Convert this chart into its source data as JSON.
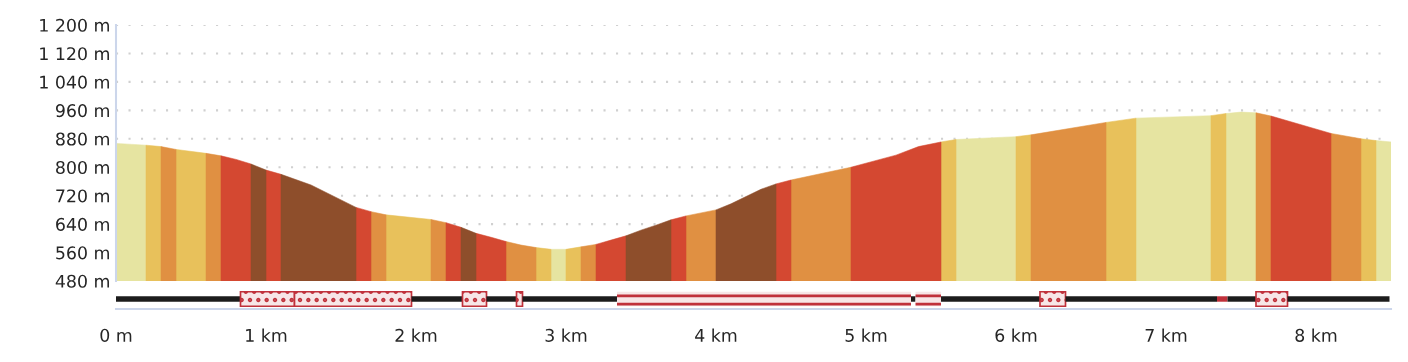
{
  "chart_data": [
    {
      "type": "area",
      "xlim": [
        0,
        8.5
      ],
      "ylim": [
        480,
        1200
      ],
      "yticks": [
        {
          "value": 480,
          "label": "480 m"
        },
        {
          "value": 560,
          "label": "560 m"
        },
        {
          "value": 640,
          "label": "640 m"
        },
        {
          "value": 720,
          "label": "720 m"
        },
        {
          "value": 800,
          "label": "800 m"
        },
        {
          "value": 880,
          "label": "880 m"
        },
        {
          "value": 960,
          "label": "960 m"
        },
        {
          "value": 1040,
          "label": "1 040 m"
        },
        {
          "value": 1120,
          "label": "1 120 m"
        },
        {
          "value": 1200,
          "label": "1 200 m"
        }
      ],
      "grid": "y",
      "tick_labels": "y",
      "series": [
        {
          "color": "#e6e4a1",
          "x": [
            0,
            0.2,
            1.5,
            2.9,
            3.0,
            4.3,
            5.6,
            6.0,
            6.4,
            6.8,
            7.3,
            7.35,
            7.4,
            7.5,
            7.6,
            8.0,
            8.4,
            8.5
          ],
          "values": [
            867,
            862,
            null,
            569,
            569,
            null,
            878,
            886,
            null,
            938,
            945,
            null,
            951,
            955,
            953,
            null,
            875,
            871
          ]
        },
        {
          "color": "#e8c15b",
          "x": [
            0.2,
            0.3,
            0.35,
            0.4,
            0.6,
            1.2,
            1.8,
            2.1,
            2.45,
            2.8,
            2.9,
            2.95,
            3.0,
            3.1,
            4.3,
            5.5,
            5.6,
            5.8,
            6.0,
            6.1,
            6.35,
            6.6,
            6.8,
            7.05,
            7.3,
            7.4,
            7.85,
            8.3,
            8.4
          ],
          "values": [
            862,
            858,
            null,
            850,
            839,
            null,
            666,
            653,
            null,
            574,
            569,
            null,
            569,
            576,
            null,
            871,
            878,
            null,
            886,
            891,
            null,
            926,
            938,
            null,
            945,
            951,
            null,
            880,
            875
          ]
        },
        {
          "color": "#e09042",
          "x": [
            0.3,
            0.4,
            0.5,
            0.6,
            0.7,
            1.2,
            1.7,
            1.8,
            1.95,
            2.1,
            2.2,
            2.4,
            2.6,
            2.7,
            2.8,
            2.95,
            3.1,
            3.2,
            3.5,
            3.8,
            4.0,
            4.25,
            4.5,
            4.9,
            5.5,
            6.1,
            6.6,
            7.1,
            7.6,
            7.7,
            7.9,
            8.1,
            8.3
          ],
          "values": [
            858,
            850,
            null,
            839,
            832,
            null,
            675,
            666,
            null,
            653,
            644,
            null,
            591,
            581,
            574,
            null,
            576,
            583,
            null,
            663,
            680,
            null,
            764,
            800,
            null,
            891,
            926,
            null,
            953,
            944,
            null,
            895,
            880
          ]
        },
        {
          "color": "#d44831",
          "x": [
            0.7,
            0.8,
            0.9,
            0.95,
            1.0,
            1.1,
            1.35,
            1.6,
            1.7,
            1.95,
            2.2,
            2.3,
            2.35,
            2.4,
            2.5,
            2.6,
            2.9,
            3.2,
            3.3,
            3.4,
            3.55,
            3.7,
            3.8,
            4.1,
            4.4,
            4.5,
            4.7,
            4.9,
            5.2,
            5.35,
            5.5,
            6.6,
            7.7,
            8.1
          ],
          "values": [
            832,
            822,
            809,
            null,
            792,
            780,
            null,
            687,
            675,
            null,
            644,
            631,
            null,
            614,
            603,
            591,
            null,
            583,
            595,
            607,
            null,
            652,
            663,
            null,
            753,
            764,
            null,
            800,
            834,
            858,
            871,
            null,
            944,
            895
          ]
        },
        {
          "color": "#8e4e2b",
          "x": [
            0.9,
            1.0,
            1.05,
            1.1,
            1.3,
            1.6,
            1.95,
            2.3,
            2.4,
            2.9,
            3.4,
            3.5,
            3.6,
            3.7,
            3.85,
            4.0,
            4.1,
            4.3,
            4.4
          ],
          "values": [
            809,
            792,
            null,
            780,
            750,
            687,
            null,
            631,
            614,
            null,
            607,
            623,
            637,
            652,
            null,
            680,
            697,
            738,
            753
          ]
        }
      ]
    },
    {
      "type": "bar",
      "orientation": "horizontal",
      "stacked": true,
      "categories": [
        null
      ],
      "xlim": [
        0,
        8.5
      ],
      "xticks": [
        {
          "value": 0,
          "label": "0 m"
        },
        {
          "value": 1,
          "label": "1 km"
        },
        {
          "value": 2,
          "label": "2 km"
        },
        {
          "value": 3,
          "label": "3 km"
        },
        {
          "value": 4,
          "label": "4 km"
        },
        {
          "value": 5,
          "label": "5 km"
        },
        {
          "value": 6,
          "label": "6 km"
        },
        {
          "value": 7,
          "label": "7 km"
        },
        {
          "value": 8,
          "label": "8 km"
        }
      ],
      "tick_labels": "x",
      "series": [
        {
          "color": "#1c1c1c",
          "line_style": "solid",
          "values": [
            0.83
          ]
        },
        {
          "color": "#c0313b",
          "line_style": "dotted",
          "values": [
            0.36
          ]
        },
        {
          "color": "#c0313b",
          "line_style": "dotted",
          "values": [
            0.78
          ]
        },
        {
          "color": "#1c1c1c",
          "line_style": "solid",
          "values": [
            0.34
          ]
        },
        {
          "color": "#c0313b",
          "line_style": "dotted",
          "values": [
            0.16
          ]
        },
        {
          "color": "#1c1c1c",
          "line_style": "solid",
          "values": [
            0.2
          ]
        },
        {
          "color": "#c0313b",
          "line_style": "dotted",
          "values": [
            0.04
          ]
        },
        {
          "color": "#1c1c1c",
          "line_style": "solid",
          "values": [
            0.63
          ]
        },
        {
          "color": "#c0313b",
          "line_style": "dashed",
          "values": [
            1.96
          ]
        },
        {
          "color": "#1c1c1c",
          "line_style": "solid",
          "values": [
            0.03
          ]
        },
        {
          "color": "#c0313b",
          "line_style": "dashed",
          "values": [
            0.17
          ]
        },
        {
          "color": "#1c1c1c",
          "line_style": "solid",
          "values": [
            0.66
          ]
        },
        {
          "color": "#c0313b",
          "line_style": "dotted",
          "values": [
            0.17
          ]
        },
        {
          "color": "#1c1c1c",
          "line_style": "solid",
          "values": [
            1.01
          ]
        },
        {
          "color": "#c0313b",
          "line_style": "solid",
          "values": [
            0.07
          ]
        },
        {
          "color": "#1c1c1c",
          "line_style": "solid",
          "values": [
            0.19
          ]
        },
        {
          "color": "#c0313b",
          "line_style": "dotted",
          "values": [
            0.21
          ]
        },
        {
          "color": "#1c1c1c",
          "line_style": "solid",
          "values": [
            0.68
          ]
        }
      ]
    }
  ]
}
